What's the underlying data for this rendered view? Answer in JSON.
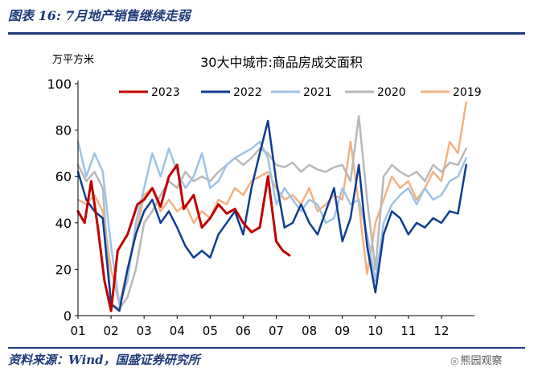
{
  "figure": {
    "title": "图表 16:  7月地产销售继续走弱",
    "source": "资料来源：Wind，国盛证券研究所",
    "watermark": "熊园观察",
    "watermark_icon": "wechat-icon"
  },
  "chart_data": {
    "type": "line",
    "title": "30大中城市:商品房成交面积",
    "ylabel": "万平方米",
    "xlabel": "",
    "ylim": [
      0,
      100
    ],
    "yticks": [
      "0",
      "20",
      "40",
      "60",
      "80",
      "100"
    ],
    "xticks": [
      "01",
      "02",
      "03",
      "04",
      "05",
      "06",
      "07",
      "08",
      "09",
      "10",
      "11",
      "12"
    ],
    "xlim": [
      1,
      13
    ],
    "legend_position": "top",
    "grid": false,
    "series": [
      {
        "name": "2023",
        "color": "#c00000",
        "x": [
          1.0,
          1.2,
          1.4,
          1.6,
          1.8,
          2.0,
          2.2,
          2.5,
          2.8,
          3.0,
          3.25,
          3.5,
          3.75,
          4.0,
          4.2,
          4.5,
          4.75,
          5.0,
          5.25,
          5.5,
          5.75,
          6.0,
          6.25,
          6.5,
          6.75,
          7.0,
          7.2,
          7.4
        ],
        "y": [
          45,
          40,
          58,
          38,
          15,
          2,
          28,
          35,
          48,
          50,
          55,
          47,
          60,
          65,
          46,
          52,
          38,
          42,
          48,
          44,
          46,
          40,
          36,
          38,
          60,
          32,
          28,
          26
        ]
      },
      {
        "name": "2022",
        "color": "#0f3d91",
        "x": [
          1.0,
          1.25,
          1.5,
          1.75,
          2.0,
          2.25,
          2.5,
          2.75,
          3.0,
          3.25,
          3.5,
          3.75,
          4.0,
          4.25,
          4.5,
          4.75,
          5.0,
          5.25,
          5.5,
          5.75,
          6.0,
          6.25,
          6.5,
          6.75,
          7.0,
          7.25,
          7.5,
          7.75,
          8.0,
          8.25,
          8.5,
          8.75,
          9.0,
          9.25,
          9.5,
          9.75,
          10.0,
          10.25,
          10.5,
          10.75,
          11.0,
          11.25,
          11.5,
          11.75,
          12.0,
          12.25,
          12.5,
          12.75
        ],
        "y": [
          62,
          50,
          45,
          42,
          5,
          2,
          20,
          35,
          45,
          50,
          40,
          45,
          38,
          30,
          25,
          28,
          25,
          35,
          40,
          45,
          35,
          55,
          70,
          84,
          58,
          38,
          40,
          48,
          40,
          35,
          45,
          55,
          32,
          42,
          65,
          30,
          10,
          35,
          45,
          42,
          35,
          40,
          38,
          42,
          40,
          45,
          44,
          65
        ]
      },
      {
        "name": "2021",
        "color": "#9ec3e6",
        "x": [
          1.0,
          1.25,
          1.5,
          1.75,
          2.0,
          2.25,
          2.5,
          2.75,
          3.0,
          3.25,
          3.5,
          3.75,
          4.0,
          4.25,
          4.5,
          4.75,
          5.0,
          5.25,
          5.5,
          5.75,
          6.0,
          6.25,
          6.5,
          6.75,
          7.0,
          7.25,
          7.5,
          7.75,
          8.0,
          8.25,
          8.5,
          8.75,
          9.0,
          9.25,
          9.5,
          9.75,
          10.0,
          10.25,
          10.5,
          10.75,
          11.0,
          11.25,
          11.5,
          11.75,
          12.0,
          12.25,
          12.5,
          12.75
        ],
        "y": [
          75,
          60,
          70,
          62,
          30,
          5,
          15,
          40,
          55,
          70,
          60,
          72,
          62,
          55,
          60,
          70,
          55,
          58,
          65,
          68,
          70,
          72,
          75,
          68,
          48,
          55,
          50,
          45,
          50,
          48,
          40,
          42,
          55,
          48,
          50,
          35,
          15,
          40,
          48,
          52,
          55,
          48,
          55,
          50,
          52,
          58,
          60,
          68
        ]
      },
      {
        "name": "2020",
        "color": "#b8b8b8",
        "x": [
          1.0,
          1.25,
          1.5,
          1.75,
          2.0,
          2.25,
          2.5,
          2.75,
          3.0,
          3.25,
          3.5,
          3.75,
          4.0,
          4.25,
          4.5,
          4.75,
          5.0,
          5.25,
          5.5,
          5.75,
          6.0,
          6.25,
          6.5,
          6.75,
          7.0,
          7.25,
          7.5,
          7.75,
          8.0,
          8.25,
          8.5,
          8.75,
          9.0,
          9.25,
          9.5,
          9.75,
          10.0,
          10.25,
          10.5,
          10.75,
          11.0,
          11.25,
          11.5,
          11.75,
          12.0,
          12.25,
          12.5,
          12.75
        ],
        "y": [
          65,
          58,
          62,
          55,
          5,
          3,
          8,
          20,
          40,
          45,
          52,
          58,
          55,
          62,
          58,
          60,
          58,
          62,
          65,
          68,
          65,
          68,
          72,
          70,
          65,
          64,
          66,
          62,
          65,
          63,
          62,
          64,
          65,
          58,
          86,
          50,
          20,
          60,
          65,
          62,
          60,
          62,
          58,
          65,
          62,
          66,
          65,
          72
        ]
      },
      {
        "name": "2019",
        "color": "#f4b183",
        "x": [
          1.0,
          1.25,
          1.5,
          1.75,
          2.0,
          2.25,
          2.5,
          2.75,
          3.0,
          3.25,
          3.5,
          3.75,
          4.0,
          4.25,
          4.5,
          4.75,
          5.0,
          5.25,
          5.5,
          5.75,
          6.0,
          6.25,
          6.5,
          6.75,
          7.0,
          7.25,
          7.5,
          7.75,
          8.0,
          8.25,
          8.5,
          8.75,
          9.0,
          9.25,
          9.5,
          9.75,
          10.0,
          10.25,
          10.5,
          10.75,
          11.0,
          11.25,
          11.5,
          11.75,
          12.0,
          12.25,
          12.5,
          12.75
        ],
        "y": [
          50,
          48,
          52,
          45,
          20,
          5,
          20,
          35,
          52,
          55,
          45,
          50,
          45,
          48,
          40,
          45,
          42,
          50,
          48,
          55,
          52,
          58,
          60,
          62,
          55,
          50,
          52,
          48,
          55,
          45,
          48,
          52,
          50,
          75,
          48,
          18,
          40,
          50,
          60,
          55,
          58,
          50,
          55,
          62,
          58,
          75,
          70,
          92
        ]
      }
    ]
  }
}
